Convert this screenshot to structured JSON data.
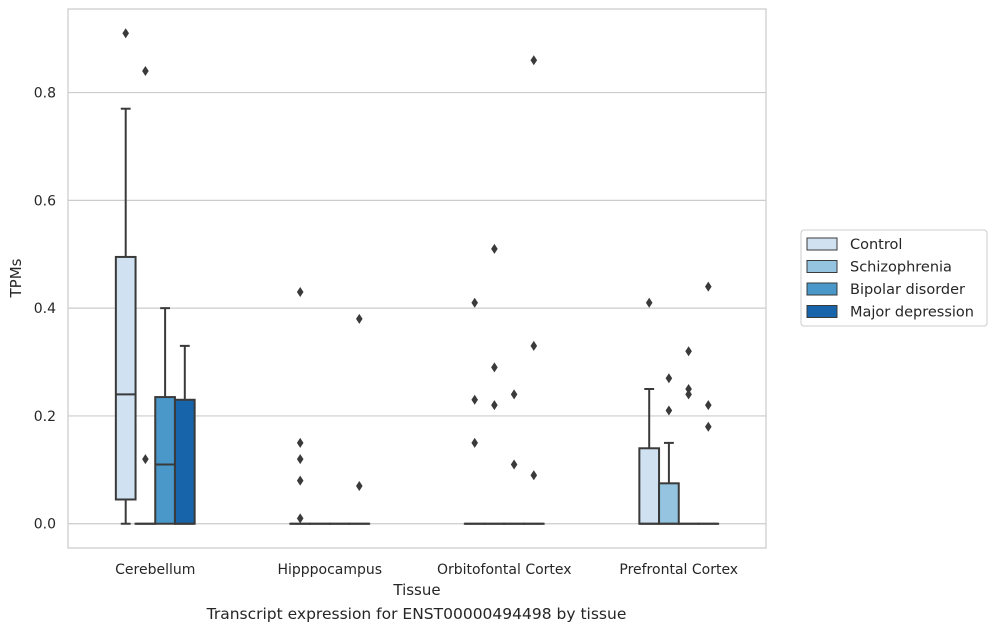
{
  "caption": "Transcript expression for ENST00000494498 by tissue",
  "chart_data": {
    "type": "box",
    "xlabel": "Tissue",
    "ylabel": "TPMs",
    "ylim": [
      -0.045,
      0.955
    ],
    "yticks": [
      0.0,
      0.2,
      0.4,
      0.6,
      0.8
    ],
    "ytick_labels": [
      "0.0",
      "0.2",
      "0.4",
      "0.6",
      "0.8"
    ],
    "grid": "horizontal",
    "legend_position": "right",
    "categories": [
      "Cerebellum",
      "Hipppocampus",
      "Orbitofontal Cortex",
      "Prefrontal Cortex"
    ],
    "series": [
      {
        "name": "Control",
        "color": "#d0e1f2",
        "boxes": [
          {
            "whisker_low": 0.0,
            "q1": 0.045,
            "median": 0.24,
            "q3": 0.495,
            "whisker_high": 0.77,
            "outliers": [
              0.91
            ]
          },
          {
            "whisker_low": 0.0,
            "q1": 0.0,
            "median": 0.0,
            "q3": 0.0,
            "whisker_high": 0.0,
            "outliers": [
              0.43,
              0.15,
              0.12,
              0.08,
              0.01
            ]
          },
          {
            "whisker_low": 0.0,
            "q1": 0.0,
            "median": 0.0,
            "q3": 0.0,
            "whisker_high": 0.0,
            "outliers": [
              0.41,
              0.23,
              0.15
            ]
          },
          {
            "whisker_low": 0.0,
            "q1": 0.0,
            "median": 0.0,
            "q3": 0.14,
            "whisker_high": 0.25,
            "outliers": [
              0.41
            ]
          }
        ]
      },
      {
        "name": "Schizophrenia",
        "color": "#94c4df",
        "boxes": [
          {
            "whisker_low": 0.0,
            "q1": 0.0,
            "median": 0.0,
            "q3": 0.0,
            "whisker_high": 0.0,
            "outliers": [
              0.84,
              0.12
            ]
          },
          {
            "whisker_low": 0.0,
            "q1": 0.0,
            "median": 0.0,
            "q3": 0.0,
            "whisker_high": 0.0,
            "outliers": []
          },
          {
            "whisker_low": 0.0,
            "q1": 0.0,
            "median": 0.0,
            "q3": 0.0,
            "whisker_high": 0.0,
            "outliers": [
              0.51,
              0.29,
              0.22
            ]
          },
          {
            "whisker_low": 0.0,
            "q1": 0.0,
            "median": 0.0,
            "q3": 0.075,
            "whisker_high": 0.15,
            "outliers": [
              0.27,
              0.21
            ]
          }
        ]
      },
      {
        "name": "Bipolar disorder",
        "color": "#4a98c9",
        "boxes": [
          {
            "whisker_low": 0.0,
            "q1": 0.0,
            "median": 0.11,
            "q3": 0.235,
            "whisker_high": 0.4,
            "outliers": []
          },
          {
            "whisker_low": 0.0,
            "q1": 0.0,
            "median": 0.0,
            "q3": 0.0,
            "whisker_high": 0.0,
            "outliers": []
          },
          {
            "whisker_low": 0.0,
            "q1": 0.0,
            "median": 0.0,
            "q3": 0.0,
            "whisker_high": 0.0,
            "outliers": [
              0.24,
              0.11
            ]
          },
          {
            "whisker_low": 0.0,
            "q1": 0.0,
            "median": 0.0,
            "q3": 0.0,
            "whisker_high": 0.0,
            "outliers": [
              0.32,
              0.25,
              0.24
            ]
          }
        ]
      },
      {
        "name": "Major depression",
        "color": "#1764ab",
        "boxes": [
          {
            "whisker_low": 0.0,
            "q1": 0.0,
            "median": 0.0,
            "q3": 0.23,
            "whisker_high": 0.33,
            "outliers": []
          },
          {
            "whisker_low": 0.0,
            "q1": 0.0,
            "median": 0.0,
            "q3": 0.0,
            "whisker_high": 0.0,
            "outliers": [
              0.38,
              0.07
            ]
          },
          {
            "whisker_low": 0.0,
            "q1": 0.0,
            "median": 0.0,
            "q3": 0.0,
            "whisker_high": 0.0,
            "outliers": [
              0.86,
              0.33,
              0.09
            ]
          },
          {
            "whisker_low": 0.0,
            "q1": 0.0,
            "median": 0.0,
            "q3": 0.0,
            "whisker_high": 0.0,
            "outliers": [
              0.44,
              0.22,
              0.18
            ]
          }
        ]
      }
    ]
  }
}
